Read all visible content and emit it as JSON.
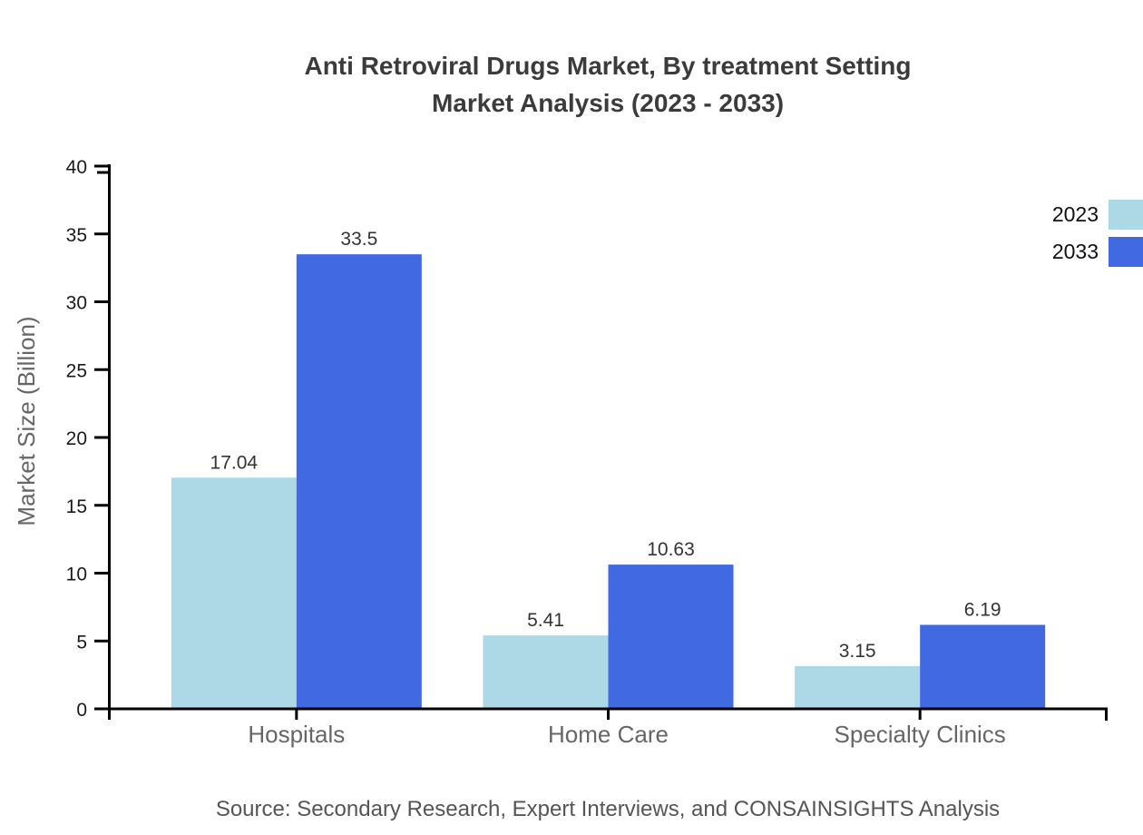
{
  "title": {
    "line1": "Anti Retroviral Drugs Market, By treatment Setting",
    "line2": "Market Analysis (2023 - 2033)"
  },
  "source": "Source: Secondary Research, Expert Interviews, and CONSAINSIGHTS Analysis",
  "chart_data": {
    "type": "bar",
    "categories": [
      "Hospitals",
      "Home Care",
      "Specialty Clinics"
    ],
    "series": [
      {
        "name": "2023",
        "color": "#ADD8E6",
        "values": [
          17.04,
          5.41,
          3.15
        ]
      },
      {
        "name": "2033",
        "color": "#4169E1",
        "values": [
          33.5,
          10.63,
          6.19
        ]
      }
    ],
    "value_labels": [
      "17.04",
      "33.5",
      "5.41",
      "10.63",
      "3.15",
      "6.19"
    ],
    "ylabel": "Market Size (Billion)",
    "ylim": [
      0,
      40
    ],
    "yticks": [
      0,
      5,
      10,
      15,
      20,
      25,
      30,
      35,
      40
    ],
    "grid": false,
    "legend_position": "top-right",
    "colors": {
      "axis": "#000000",
      "tick_label": "#1a1a1a",
      "value_label": "#333333",
      "category_label": "#666666",
      "axis_title": "#666666",
      "title_text": "#3b3b3b",
      "source_text": "#555555"
    }
  }
}
